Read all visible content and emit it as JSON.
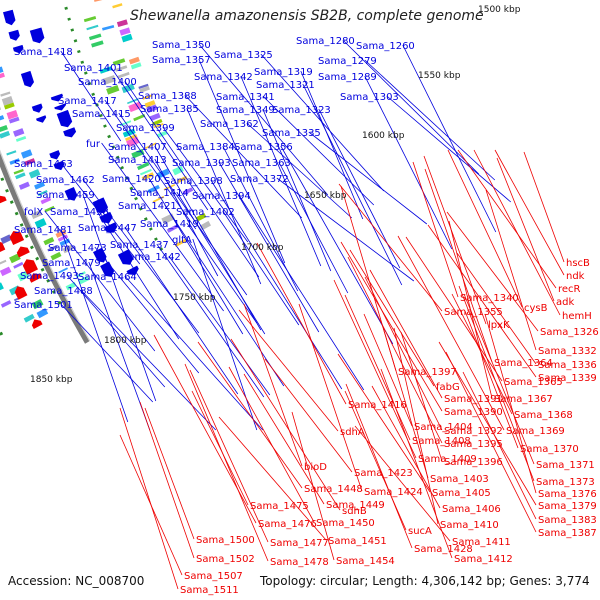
{
  "header": {
    "title": "Shewanella amazonensis SB2B, complete genome"
  },
  "footer": {
    "accession": "Accession: NC_008700",
    "topology": "Topology: circular; Length: 4,306,142 bp; Genes: 3,774"
  },
  "scale_labels": [
    "1500 kbp",
    "1550 kbp",
    "1600 kbp",
    "1650 kbp",
    "1700 kbp",
    "1750 kbp",
    "1800 kbp",
    "1850 kbp"
  ],
  "forward_labels": [
    "Sama_1418",
    "Sama_1401",
    "Sama_1400",
    "Sama_1417",
    "Sama_1415",
    "Sama_1399",
    "fur",
    "Sama_1463",
    "Sama_1462",
    "Sama_1459",
    "folX",
    "Sama_1481",
    "Sama_1473",
    "Sama_1479",
    "Sama_1493",
    "Sama_1488",
    "Sama_1501",
    "Sama_1350",
    "Sama_1357",
    "Sama_1325",
    "Sama_1342",
    "Sama_1388",
    "Sama_1385",
    "Sama_1341",
    "Sama_1349",
    "Sama_1362",
    "Sama_1319",
    "Sama_1321",
    "Sama_1280",
    "Sama_1260",
    "Sama_1279",
    "Sama_1289",
    "Sama_1303",
    "Sama_1323",
    "Sama_1335",
    "Sama_1384",
    "Sama_1356",
    "Sama_1363",
    "Sama_1407",
    "Sama_1413",
    "Sama_1393",
    "Sama_1372",
    "Sama_1420",
    "Sama_1398",
    "Sama_1414",
    "Sama_1394",
    "Sama_1458",
    "Sama_1421",
    "Sama_1402",
    "Sama_1447",
    "Sama_1419",
    "Sama_1437",
    "gltA",
    "Sama_1442",
    "Sama_1464"
  ],
  "reverse_labels": [
    "hscB",
    "ndk",
    "recR",
    "adk",
    "hemH",
    "Sama_1340",
    "cysB",
    "Sama_1355",
    "lpxK",
    "Sama_1326",
    "Sama_1332",
    "Sama_1336",
    "Sama_1339",
    "Sama_1364",
    "Sama_1365",
    "Sama_1397",
    "fabG",
    "Sama_1367",
    "Sama_1391",
    "Sama_1390",
    "Sama_1368",
    "Sama_1416",
    "Sama_1404",
    "Sama_1392",
    "Sama_1369",
    "Sama_1408",
    "Sama_1395",
    "Sama_1370",
    "Sama_1409",
    "Sama_1396",
    "Sama_1371",
    "sdhA",
    "bioD",
    "Sama_1423",
    "Sama_1403",
    "Sama_1373",
    "Sama_1448",
    "Sama_1424",
    "Sama_1405",
    "Sama_1376",
    "Sama_1449",
    "sdhB",
    "Sama_1406",
    "Sama_1379",
    "Sama_1475",
    "Sama_1450",
    "Sama_1410",
    "Sama_1383",
    "Sama_1476",
    "sucA",
    "Sama_1387",
    "Sama_1500",
    "Sama_1477",
    "Sama_1451",
    "Sama_1428",
    "Sama_1411",
    "Sama_1502",
    "Sama_1478",
    "Sama_1454",
    "Sama_1412",
    "Sama_1507",
    "Sama_1511"
  ],
  "colors": {
    "forward": "#0000dd",
    "reverse": "#ee0000",
    "backbone": "#7a7a7a",
    "tick_marks": "#2a8a2a"
  }
}
